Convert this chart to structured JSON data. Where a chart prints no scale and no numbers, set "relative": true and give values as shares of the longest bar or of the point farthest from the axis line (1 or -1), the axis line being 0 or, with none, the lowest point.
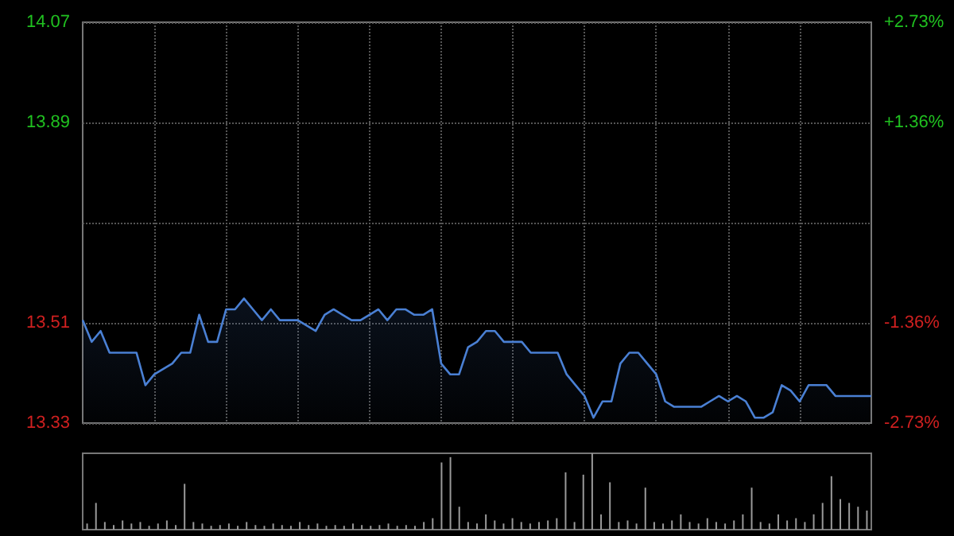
{
  "chart_data": [
    {
      "type": "area",
      "categories": [
        null,
        null,
        null,
        null,
        null,
        null,
        null,
        null,
        null,
        null,
        null,
        null,
        null,
        null,
        null,
        null,
        null,
        null,
        null,
        null,
        null,
        null,
        null,
        null,
        null,
        null,
        null,
        null,
        null,
        null,
        null,
        null,
        null,
        null,
        null,
        null,
        null,
        null,
        null,
        null,
        null,
        null,
        null,
        null,
        null,
        null,
        null,
        null,
        null,
        null,
        null,
        null,
        null,
        null,
        null,
        null,
        null,
        null,
        null,
        null,
        null,
        null,
        null,
        null,
        null,
        null,
        null,
        null,
        null,
        null,
        null,
        null,
        null,
        null,
        null,
        null,
        null,
        null,
        null,
        null,
        null,
        null,
        null,
        null,
        null,
        null,
        null,
        null,
        null
      ],
      "series": [
        {
          "color": "#4a80d4",
          "values": [
            13.52,
            13.48,
            13.5,
            13.46,
            13.46,
            13.46,
            13.46,
            13.4,
            13.42,
            13.43,
            13.44,
            13.46,
            13.46,
            13.53,
            13.48,
            13.48,
            13.54,
            13.54,
            13.56,
            13.54,
            13.52,
            13.54,
            13.52,
            13.52,
            13.52,
            13.51,
            13.5,
            13.53,
            13.54,
            13.53,
            13.52,
            13.52,
            13.53,
            13.54,
            13.52,
            13.54,
            13.54,
            13.53,
            13.53,
            13.54,
            13.44,
            13.42,
            13.42,
            13.47,
            13.48,
            13.5,
            13.5,
            13.48,
            13.48,
            13.48,
            13.46,
            13.46,
            13.46,
            13.46,
            13.42,
            13.4,
            13.38,
            13.34,
            13.37,
            13.37,
            13.44,
            13.46,
            13.46,
            13.44,
            13.42,
            13.37,
            13.36,
            13.36,
            13.36,
            13.36,
            13.37,
            13.38,
            13.37,
            13.38,
            13.37,
            13.34,
            13.34,
            13.35,
            13.4,
            13.39,
            13.37,
            13.4,
            13.4,
            13.4,
            13.38,
            13.38,
            13.38,
            13.38,
            13.38
          ]
        }
      ],
      "ylim": [
        13.33,
        14.07
      ],
      "yticks": [
        13.33,
        {
          "value": 13.515,
          "label": "13.51"
        },
        {
          "value": 13.7,
          "label": null
        },
        {
          "value": 13.885,
          "label": "13.89"
        },
        14.07
      ],
      "y2lim": [
        -2.73,
        2.73
      ],
      "y2ticks": [
        {
          "value": -2.73,
          "label": "-2.73%"
        },
        {
          "value": -1.365,
          "label": "-1.36%"
        },
        {
          "value": 0,
          "label": null
        },
        {
          "value": 1.365,
          "label": "+1.36%"
        },
        {
          "value": 2.73,
          "label": "+2.73%"
        }
      ],
      "grid": true,
      "line_style": "solid",
      "tick_labels": "y"
    },
    {
      "type": "bar",
      "relative": true,
      "categories": [
        null,
        null,
        null,
        null,
        null,
        null,
        null,
        null,
        null,
        null,
        null,
        null,
        null,
        null,
        null,
        null,
        null,
        null,
        null,
        null,
        null,
        null,
        null,
        null,
        null,
        null,
        null,
        null,
        null,
        null,
        null,
        null,
        null,
        null,
        null,
        null,
        null,
        null,
        null,
        null,
        null,
        null,
        null,
        null,
        null,
        null,
        null,
        null,
        null,
        null,
        null,
        null,
        null,
        null,
        null,
        null,
        null,
        null,
        null,
        null,
        null,
        null,
        null,
        null,
        null,
        null,
        null,
        null,
        null,
        null,
        null,
        null,
        null,
        null,
        null,
        null,
        null,
        null,
        null,
        null,
        null,
        null,
        null,
        null,
        null,
        null,
        null,
        null,
        null
      ],
      "series": [
        {
          "color": "#9a9a9a",
          "values": [
            0.08,
            0.35,
            0.1,
            0.06,
            0.12,
            0.08,
            0.1,
            0.05,
            0.08,
            0.12,
            0.06,
            0.6,
            0.1,
            0.08,
            0.05,
            0.06,
            0.08,
            0.05,
            0.1,
            0.06,
            0.05,
            0.08,
            0.06,
            0.05,
            0.1,
            0.06,
            0.08,
            0.05,
            0.06,
            0.05,
            0.08,
            0.06,
            0.05,
            0.06,
            0.08,
            0.05,
            0.06,
            0.05,
            0.1,
            0.15,
            0.88,
            0.95,
            0.3,
            0.1,
            0.08,
            0.2,
            0.12,
            0.08,
            0.15,
            0.1,
            0.08,
            0.1,
            0.12,
            0.15,
            0.75,
            0.1,
            0.72,
            1,
            0.2,
            0.62,
            0.1,
            0.12,
            0.08,
            0.55,
            0.1,
            0.08,
            0.12,
            0.2,
            0.1,
            0.08,
            0.15,
            0.1,
            0.08,
            0.12,
            0.2,
            0.55,
            0.1,
            0.08,
            0.2,
            0.12,
            0.15,
            0.1,
            0.2,
            0.35,
            0.7,
            0.4,
            0.35,
            0.3,
            0.25
          ]
        }
      ],
      "tick_labels": false
    }
  ]
}
